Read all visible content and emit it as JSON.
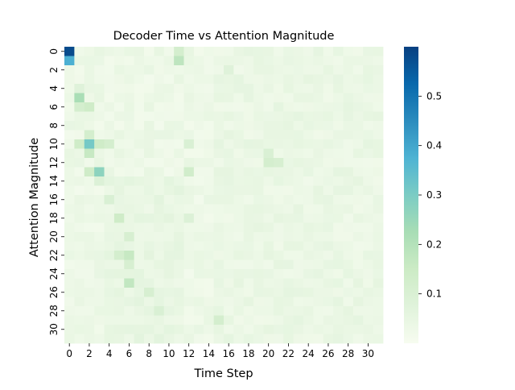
{
  "chart_data": {
    "type": "heatmap",
    "title": "Decoder Time vs Attention Magnitude",
    "xlabel": "Time Step",
    "ylabel": "Attention Magnitude",
    "rows": 32,
    "cols": 32,
    "x_tick_labels": [
      "0",
      "2",
      "4",
      "6",
      "8",
      "10",
      "12",
      "14",
      "16",
      "18",
      "20",
      "22",
      "24",
      "26",
      "28",
      "30"
    ],
    "y_tick_labels": [
      "0",
      "2",
      "4",
      "6",
      "8",
      "10",
      "12",
      "14",
      "16",
      "18",
      "20",
      "22",
      "24",
      "26",
      "28",
      "30"
    ],
    "colorbar": {
      "cmap": "GnBu",
      "vmin": 0.0,
      "vmax": 0.6,
      "ticks": [
        0.1,
        0.2,
        0.3,
        0.4,
        0.5
      ],
      "tick_labels": [
        "0.1",
        "0.2",
        "0.3",
        "0.4",
        "0.5"
      ]
    },
    "background_value_range": [
      0.0,
      0.06
    ],
    "notable_cells": [
      {
        "row": 0,
        "col": 0,
        "value": 0.58
      },
      {
        "row": 1,
        "col": 0,
        "value": 0.38
      },
      {
        "row": 0,
        "col": 11,
        "value": 0.12
      },
      {
        "row": 1,
        "col": 11,
        "value": 0.18
      },
      {
        "row": 4,
        "col": 1,
        "value": 0.08
      },
      {
        "row": 5,
        "col": 1,
        "value": 0.22
      },
      {
        "row": 6,
        "col": 1,
        "value": 0.12
      },
      {
        "row": 6,
        "col": 2,
        "value": 0.14
      },
      {
        "row": 9,
        "col": 2,
        "value": 0.12
      },
      {
        "row": 10,
        "col": 1,
        "value": 0.14
      },
      {
        "row": 10,
        "col": 2,
        "value": 0.31
      },
      {
        "row": 10,
        "col": 3,
        "value": 0.14
      },
      {
        "row": 10,
        "col": 4,
        "value": 0.12
      },
      {
        "row": 11,
        "col": 2,
        "value": 0.16
      },
      {
        "row": 13,
        "col": 2,
        "value": 0.14
      },
      {
        "row": 13,
        "col": 3,
        "value": 0.27
      },
      {
        "row": 14,
        "col": 3,
        "value": 0.09
      },
      {
        "row": 10,
        "col": 12,
        "value": 0.1
      },
      {
        "row": 13,
        "col": 12,
        "value": 0.13
      },
      {
        "row": 11,
        "col": 20,
        "value": 0.1
      },
      {
        "row": 12,
        "col": 20,
        "value": 0.12
      },
      {
        "row": 12,
        "col": 21,
        "value": 0.11
      },
      {
        "row": 16,
        "col": 4,
        "value": 0.1
      },
      {
        "row": 18,
        "col": 5,
        "value": 0.14
      },
      {
        "row": 20,
        "col": 6,
        "value": 0.11
      },
      {
        "row": 22,
        "col": 5,
        "value": 0.12
      },
      {
        "row": 22,
        "col": 6,
        "value": 0.16
      },
      {
        "row": 23,
        "col": 6,
        "value": 0.11
      },
      {
        "row": 25,
        "col": 6,
        "value": 0.17
      },
      {
        "row": 26,
        "col": 8,
        "value": 0.11
      },
      {
        "row": 28,
        "col": 9,
        "value": 0.1
      },
      {
        "row": 29,
        "col": 15,
        "value": 0.12
      },
      {
        "row": 2,
        "col": 16,
        "value": 0.08
      },
      {
        "row": 18,
        "col": 12,
        "value": 0.09
      }
    ]
  }
}
